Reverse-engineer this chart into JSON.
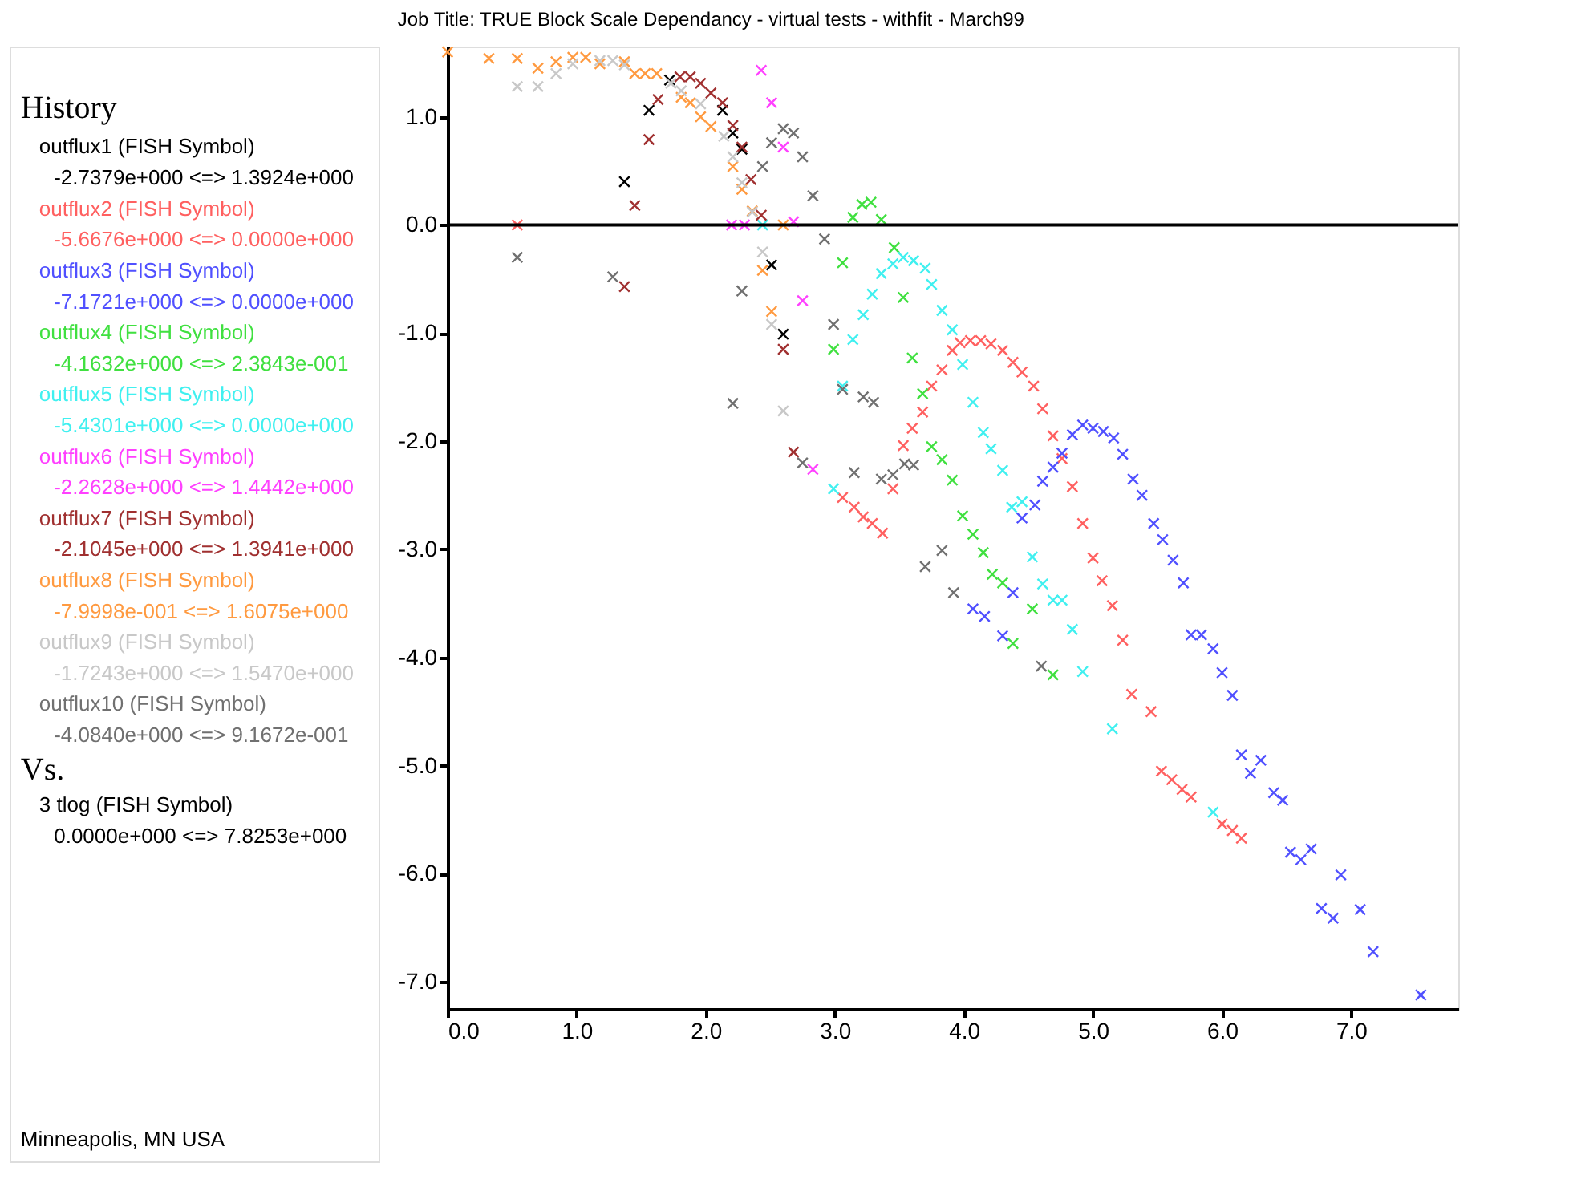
{
  "chart_data": {
    "type": "scatter",
    "title": "Job Title: TRUE Block Scale Dependancy - virtual tests - withfit - March99",
    "legend_title": "History",
    "annotations": [
      "-2.7379e+000 <=> 1.3924e+000",
      "-5.6676e+000 <=> 0.0000e+000",
      "-7.1721e+000 <=> 0.0000e+000",
      "-4.1632e+000 <=> 2.3843e-001",
      "-5.4301e+000 <=> 0.0000e+000",
      "-2.2628e+000 <=> 1.4442e+000",
      "-2.1045e+000 <=> 1.3941e+000",
      "-7.9998e-001 <=> 1.6075e+000",
      "-1.7243e+000 <=> 1.5470e+000",
      "-4.0840e+000 <=> 9.1672e-001",
      "Vs.",
      "3 tlog (FISH Symbol)",
      "0.0000e+000 <=> 7.8253e+000",
      "Minneapolis, MN USA"
    ],
    "marker": "cross",
    "legend": "left",
    "grid": false,
    "xlim": [
      0,
      7.83
    ],
    "ylim": [
      -7.25,
      1.65
    ],
    "xticks": [
      {
        "value": 0,
        "label": "0.0"
      },
      {
        "value": 1,
        "label": "1.0"
      },
      {
        "value": 2,
        "label": "2.0"
      },
      {
        "value": 3,
        "label": "3.0"
      },
      {
        "value": 4,
        "label": "4.0"
      },
      {
        "value": 5,
        "label": "5.0"
      },
      {
        "value": 6,
        "label": "6.0"
      },
      {
        "value": 7,
        "label": "7.0"
      }
    ],
    "yticks": [
      {
        "value": -7,
        "label": "-7.0"
      },
      {
        "value": -6,
        "label": "-6.0"
      },
      {
        "value": -5,
        "label": "-5.0"
      },
      {
        "value": -4,
        "label": "-4.0"
      },
      {
        "value": -3,
        "label": "-3.0"
      },
      {
        "value": -2,
        "label": "-2.0"
      },
      {
        "value": -1,
        "label": "-1.0"
      },
      {
        "value": 0,
        "label": "0.0"
      },
      {
        "value": 1,
        "label": "1.0"
      }
    ],
    "ref_lines": [
      {
        "axis": "y",
        "value": 0,
        "color": "#000000"
      }
    ],
    "series": [
      {
        "name": "outflux1 (FISH Symbol)",
        "color": "#000000",
        "x": [
          1.37,
          1.56,
          1.72,
          2.13,
          2.21,
          2.28,
          2.51,
          2.6
        ],
        "values": [
          0.4,
          1.06,
          1.34,
          1.06,
          0.85,
          0.7,
          -0.37,
          -1.01
        ]
      },
      {
        "name": "outflux2 (FISH Symbol)",
        "color": "#ff6060",
        "x": [
          0.54,
          3.06,
          3.15,
          3.22,
          3.29,
          3.37,
          3.45,
          3.53,
          3.6,
          3.68,
          3.75,
          3.83,
          3.91,
          3.97,
          4.05,
          4.13,
          4.21,
          4.3,
          4.38,
          4.45,
          4.54,
          4.61,
          4.69,
          4.76,
          4.84,
          4.92,
          5.0,
          5.07,
          5.15,
          5.23,
          5.3,
          5.45,
          5.53,
          5.61,
          5.69,
          5.76,
          6.0,
          6.08,
          6.15
        ],
        "values": [
          0,
          -2.52,
          -2.61,
          -2.7,
          -2.76,
          -2.85,
          -2.44,
          -2.04,
          -1.88,
          -1.73,
          -1.49,
          -1.34,
          -1.16,
          -1.09,
          -1.07,
          -1.07,
          -1.1,
          -1.16,
          -1.27,
          -1.36,
          -1.49,
          -1.7,
          -1.95,
          -2.16,
          -2.42,
          -2.76,
          -3.08,
          -3.29,
          -3.52,
          -3.84,
          -4.34,
          -4.5,
          -5.05,
          -5.13,
          -5.22,
          -5.29,
          -5.54,
          -5.6,
          -5.67
        ]
      },
      {
        "name": "outflux3 (FISH Symbol)",
        "color": "#5050ff",
        "x": [
          4.07,
          4.16,
          4.3,
          4.38,
          4.45,
          4.55,
          4.61,
          4.69,
          4.76,
          4.84,
          4.92,
          5.0,
          5.08,
          5.16,
          5.23,
          5.31,
          5.38,
          5.47,
          5.54,
          5.62,
          5.7,
          5.76,
          5.84,
          5.93,
          6.0,
          6.08,
          6.15,
          6.22,
          6.3,
          6.4,
          6.47,
          6.53,
          6.61,
          6.69,
          6.77,
          6.86,
          6.92,
          7.07,
          7.17,
          7.54
        ],
        "values": [
          -3.55,
          -3.62,
          -3.8,
          -3.4,
          -2.71,
          -2.59,
          -2.37,
          -2.24,
          -2.11,
          -1.94,
          -1.85,
          -1.88,
          -1.91,
          -1.97,
          -2.12,
          -2.35,
          -2.5,
          -2.76,
          -2.91,
          -3.1,
          -3.31,
          -3.79,
          -3.79,
          -3.92,
          -4.14,
          -4.35,
          -4.9,
          -5.07,
          -4.95,
          -5.25,
          -5.32,
          -5.8,
          -5.87,
          -5.77,
          -6.32,
          -6.41,
          -6.01,
          -6.33,
          -6.72,
          -7.12
        ]
      },
      {
        "name": "outflux4 (FISH Symbol)",
        "color": "#40e040",
        "x": [
          2.99,
          3.06,
          3.14,
          3.21,
          3.28,
          3.36,
          3.46,
          3.53,
          3.6,
          3.68,
          3.75,
          3.83,
          3.91,
          3.99,
          4.07,
          4.15,
          4.22,
          4.3,
          4.38,
          4.53,
          4.69
        ],
        "values": [
          -1.15,
          -0.35,
          0.07,
          0.19,
          0.21,
          0.05,
          -0.21,
          -0.67,
          -1.23,
          -1.56,
          -2.05,
          -2.17,
          -2.36,
          -2.69,
          -2.86,
          -3.03,
          -3.23,
          -3.31,
          -3.87,
          -3.55,
          -4.16
        ]
      },
      {
        "name": "outflux5 (FISH Symbol)",
        "color": "#40f0f0",
        "x": [
          2.44,
          2.99,
          3.06,
          3.14,
          3.22,
          3.29,
          3.36,
          3.45,
          3.53,
          3.61,
          3.7,
          3.75,
          3.83,
          3.91,
          3.99,
          4.07,
          4.15,
          4.21,
          4.3,
          4.37,
          4.45,
          4.53,
          4.61,
          4.69,
          4.76,
          4.84,
          4.92,
          5.15,
          5.93
        ],
        "values": [
          0,
          -2.44,
          -1.49,
          -1.06,
          -0.83,
          -0.64,
          -0.45,
          -0.36,
          -0.3,
          -0.33,
          -0.4,
          -0.55,
          -0.79,
          -0.97,
          -1.29,
          -1.64,
          -1.92,
          -2.07,
          -2.27,
          -2.61,
          -2.56,
          -3.07,
          -3.32,
          -3.47,
          -3.47,
          -3.74,
          -4.13,
          -4.66,
          -5.43
        ]
      },
      {
        "name": "outflux6 (FISH Symbol)",
        "color": "#ff40ff",
        "x": [
          2.2,
          2.3,
          2.43,
          2.51,
          2.6,
          2.68,
          2.75,
          2.83
        ],
        "values": [
          0,
          0,
          1.43,
          1.13,
          0.72,
          0.03,
          -0.7,
          -2.26
        ]
      },
      {
        "name": "outflux7 (FISH Symbol)",
        "color": "#a03030",
        "x": [
          1.37,
          1.45,
          1.56,
          1.63,
          1.8,
          1.88,
          1.96,
          2.04,
          2.13,
          2.21,
          2.28,
          2.35,
          2.43,
          2.6,
          2.68
        ],
        "values": [
          -0.57,
          0.18,
          0.79,
          1.16,
          1.37,
          1.37,
          1.31,
          1.22,
          1.13,
          0.92,
          0.72,
          0.42,
          0.09,
          -1.15,
          -2.1
        ]
      },
      {
        "name": "outflux8 (FISH Symbol)",
        "color": "#ff9a40",
        "x": [
          0,
          0.32,
          0.54,
          0.7,
          0.84,
          0.97,
          1.07,
          1.18,
          1.37,
          1.45,
          1.53,
          1.62,
          1.81,
          1.88,
          1.96,
          2.04,
          2.21,
          2.28,
          2.36,
          2.44,
          2.51,
          2.6
        ],
        "values": [
          1.6,
          1.54,
          1.54,
          1.45,
          1.51,
          1.55,
          1.55,
          1.49,
          1.51,
          1.4,
          1.4,
          1.4,
          1.18,
          1.13,
          1.0,
          0.91,
          0.54,
          0.33,
          0.13,
          -0.42,
          -0.8,
          0
        ]
      },
      {
        "name": "outflux9 (FISH Symbol)",
        "color": "#c8c8c8",
        "x": [
          0.54,
          0.7,
          0.84,
          0.97,
          1.18,
          1.28,
          1.37,
          1.73,
          1.81,
          1.96,
          2.14,
          2.21,
          2.28,
          2.36,
          2.44,
          2.51,
          2.6
        ],
        "values": [
          1.28,
          1.28,
          1.4,
          1.49,
          1.52,
          1.52,
          1.48,
          1.31,
          1.24,
          1.12,
          0.82,
          0.63,
          0.39,
          0.12,
          -0.25,
          -0.92,
          -1.72
        ]
      },
      {
        "name": "outflux10 (FISH Symbol)",
        "color": "#707070",
        "x": [
          0.54,
          1.28,
          2.21,
          2.28,
          2.44,
          2.51,
          2.6,
          2.68,
          2.75,
          2.75,
          2.83,
          2.92,
          2.99,
          3.06,
          3.15,
          3.22,
          3.3,
          3.36,
          3.45,
          3.54,
          3.61,
          3.7,
          3.83,
          3.92,
          4.6
        ],
        "values": [
          -0.3,
          -0.48,
          -1.65,
          -0.61,
          0.54,
          0.76,
          0.89,
          0.85,
          0.63,
          -2.2,
          0.27,
          -0.13,
          -0.92,
          -1.52,
          -2.29,
          -1.59,
          -1.64,
          -2.35,
          -2.31,
          -2.21,
          -2.22,
          -3.16,
          -3.01,
          -3.4,
          -4.08
        ]
      }
    ]
  }
}
